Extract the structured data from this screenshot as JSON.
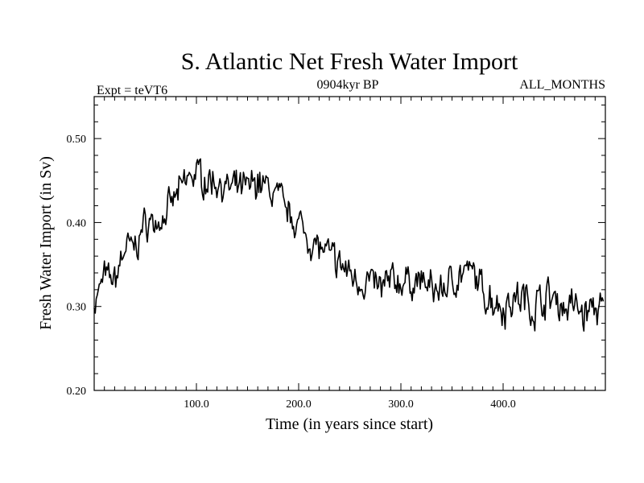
{
  "chart_data": {
    "type": "line",
    "title": "S. Atlantic Net Fresh Water Import",
    "subtitle_left": "Expt = teVT6",
    "subtitle_center": "0904kyr BP",
    "subtitle_right": "ALL_MONTHS",
    "xlabel": "Time (in years since start)",
    "ylabel": "Fresh Water Import (in Sv)",
    "xlim": [
      0,
      500
    ],
    "ylim": [
      0.2,
      0.55
    ],
    "x_ticks": [
      100,
      200,
      300,
      400
    ],
    "x_tick_labels": [
      "100.0",
      "200.0",
      "300.0",
      "400.0"
    ],
    "y_ticks": [
      0.2,
      0.3,
      0.4,
      0.5
    ],
    "y_tick_labels": [
      "0.20",
      "0.30",
      "0.40",
      "0.50"
    ],
    "grid": false,
    "series": [
      {
        "name": "Fresh Water Import",
        "color": "#000000",
        "x": [
          0,
          10,
          20,
          30,
          40,
          50,
          60,
          70,
          80,
          90,
          100,
          110,
          120,
          130,
          140,
          150,
          160,
          170,
          180,
          190,
          200,
          210,
          220,
          230,
          240,
          250,
          260,
          270,
          280,
          290,
          300,
          310,
          320,
          330,
          340,
          350,
          360,
          370,
          380,
          390,
          400,
          410,
          420,
          430,
          440,
          450,
          460,
          470,
          480,
          490,
          500
        ],
        "values": [
          0.3,
          0.34,
          0.33,
          0.37,
          0.37,
          0.4,
          0.4,
          0.41,
          0.43,
          0.45,
          0.46,
          0.45,
          0.45,
          0.44,
          0.44,
          0.44,
          0.45,
          0.44,
          0.43,
          0.41,
          0.4,
          0.38,
          0.37,
          0.36,
          0.35,
          0.34,
          0.33,
          0.33,
          0.32,
          0.33,
          0.33,
          0.33,
          0.33,
          0.32,
          0.32,
          0.33,
          0.34,
          0.34,
          0.32,
          0.31,
          0.3,
          0.31,
          0.31,
          0.3,
          0.31,
          0.31,
          0.3,
          0.3,
          0.29,
          0.3,
          0.29
        ]
      }
    ]
  }
}
